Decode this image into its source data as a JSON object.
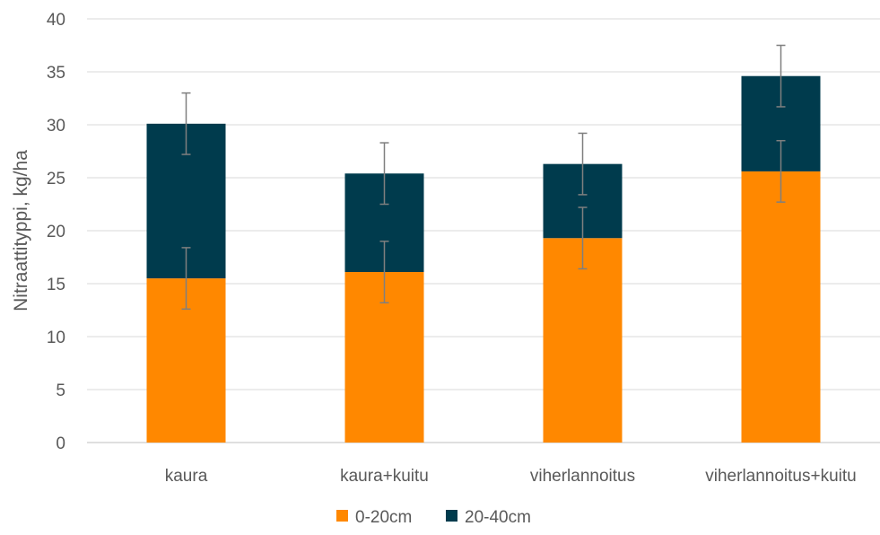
{
  "chart_data": {
    "type": "bar",
    "stacked": true,
    "categories": [
      "kaura",
      "kaura+kuitu",
      "viherlannoitus",
      "viherlannoitus+kuitu"
    ],
    "series": [
      {
        "name": "0-20cm",
        "color": "#FF8800",
        "values": [
          15.5,
          16.1,
          19.3,
          25.6
        ],
        "error": [
          2.9,
          2.9,
          2.9,
          2.9
        ]
      },
      {
        "name": "20-40cm",
        "color": "#003B4D",
        "values": [
          14.6,
          9.3,
          7.0,
          9.0
        ],
        "error": [
          2.9,
          2.9,
          2.9,
          2.9
        ]
      }
    ],
    "title": "",
    "xlabel": "",
    "ylabel": "Nitraattityppi, kg/ha",
    "ylim": [
      0,
      40
    ],
    "yticks": [
      0,
      5,
      10,
      15,
      20,
      25,
      30,
      35,
      40
    ],
    "grid": true,
    "legend": "bottom"
  }
}
